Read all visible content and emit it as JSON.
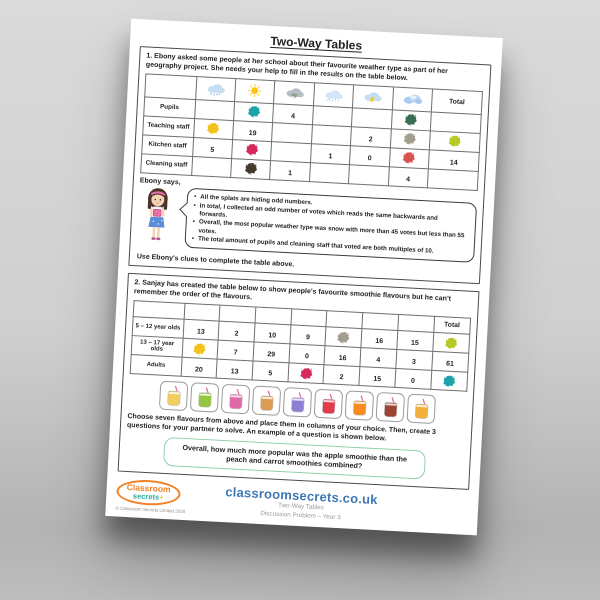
{
  "title": "Two-Way Tables",
  "section1": {
    "question": "1. Ebony asked some people at her school about their favourite weather type as part of her geography project. She needs your help to fill in the results on the table below.",
    "table": {
      "column_icons": [
        "rain-cloud",
        "sun",
        "tornado",
        "snow-cloud",
        "storm-cloud",
        "cloud"
      ],
      "total_header": "Total",
      "rows": [
        {
          "label": "Pupils",
          "cells": [
            "",
            "splat:teal",
            "4",
            "",
            "",
            "splat:darkgreen",
            ""
          ]
        },
        {
          "label": "Teaching staff",
          "cells": [
            "splat:yellow",
            "19",
            "",
            "",
            "2",
            "splat:taupe",
            "splat:lime"
          ]
        },
        {
          "label": "Kitchen staff",
          "cells": [
            "5",
            "splat:crimson",
            "",
            "1",
            "0",
            "splat:red",
            "14"
          ]
        },
        {
          "label": "Cleaning staff",
          "cells": [
            "",
            "splat:brown",
            "1",
            "",
            "",
            "4",
            ""
          ]
        }
      ]
    },
    "says_label": "Ebony says,",
    "clues": [
      "All the splats are hiding odd numbers.",
      "In total, I collected an odd number of votes which reads the same backwards and forwards.",
      "Overall, the most popular weather type was snow with more than 45 votes but less than 55 votes.",
      "The total amount of pupils and cleaning staff that voted are both multiples of 10."
    ],
    "use_clues": "Use Ebony's clues to complete the table above."
  },
  "section2": {
    "question": "2. Sanjay has created the table below to show people's favourite smoothie flavours but he can't remember the order of the flavours.",
    "table": {
      "flavour_columns": 7,
      "total_header": "Total",
      "rows": [
        {
          "label": "5 – 12 year olds",
          "cells": [
            "13",
            "2",
            "10",
            "9",
            "splat:taupe",
            "16",
            "15",
            "splat:lime"
          ]
        },
        {
          "label": "13 – 17 year olds",
          "cells": [
            "splat:yellow",
            "7",
            "29",
            "0",
            "16",
            "4",
            "3",
            "61"
          ]
        },
        {
          "label": "Adults",
          "cells": [
            "20",
            "13",
            "5",
            "splat:crimson",
            "2",
            "15",
            "0",
            "splat:teal"
          ]
        }
      ]
    },
    "smoothies": [
      {
        "name": "yellow-smoothie",
        "color": "#f2cf5c"
      },
      {
        "name": "green-smoothie",
        "color": "#93c63e"
      },
      {
        "name": "pink-smoothie",
        "color": "#e06aa8"
      },
      {
        "name": "peach-smoothie",
        "color": "#dd9a55"
      },
      {
        "name": "purple-smoothie",
        "color": "#8f7fd4"
      },
      {
        "name": "red-smoothie",
        "color": "#e23b4e"
      },
      {
        "name": "orange-smoothie",
        "color": "#f78b1f"
      },
      {
        "name": "berry-smoothie",
        "color": "#9c4434"
      },
      {
        "name": "mango-smoothie",
        "color": "#f3b13c"
      }
    ],
    "instructions": "Choose seven flavours from above and place them in columns of your choice. Then, create 3 questions for your partner to solve. An example of a question is shown below.",
    "example_question": "Overall, how much more popular was the apple smoothie than the peach and carrot smoothies combined?"
  },
  "footer": {
    "logo_top": "Classroom",
    "logo_bottom": "secrets",
    "copyright": "© Classroom Secrets Limited 2020",
    "website": "classroomsecrets.co.uk",
    "doc_title": "Two-Way Tables",
    "doc_subtitle": "Discussion Problem – Year 3"
  },
  "colors": {
    "splats": {
      "teal": "#1fa3ab",
      "darkgreen": "#3c6e55",
      "yellow": "#f2c21c",
      "taupe": "#a39d8f",
      "lime": "#b6c926",
      "crimson": "#d8295f",
      "red": "#d85450",
      "brown": "#453a2e"
    },
    "example_box_border": "#8ed0a9",
    "footer_link": "#3c78b4",
    "logo_orange": "#f08125",
    "logo_teal": "#2aa99f"
  }
}
